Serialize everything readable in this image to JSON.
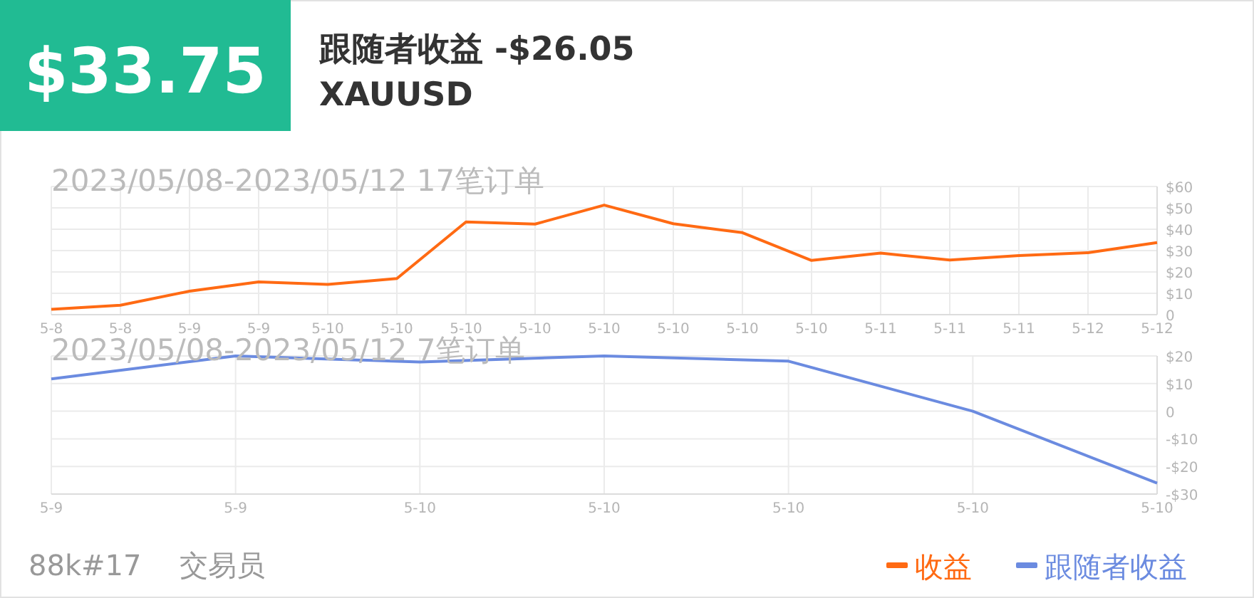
{
  "chart_data": [
    {
      "type": "line",
      "title": "2023/05/08-2023/05/12 17笔订单",
      "categories": [
        "5-8",
        "5-8",
        "5-9",
        "5-9",
        "5-10",
        "5-10",
        "5-10",
        "5-10",
        "5-10",
        "5-10",
        "5-10",
        "5-10",
        "5-11",
        "5-11",
        "5-11",
        "5-12",
        "5-12"
      ],
      "series": [
        {
          "name": "收益",
          "color": "#ff6a13",
          "values": [
            2.5,
            4.4,
            11,
            15.3,
            14.2,
            16.9,
            43.4,
            42.4,
            51.3,
            42.6,
            38.4,
            25.4,
            28.8,
            25.6,
            27.7,
            29,
            33.75
          ]
        }
      ],
      "ylim": [
        0,
        60
      ],
      "yticks": [
        {
          "value": 0,
          "label": "0"
        },
        {
          "value": 10,
          "label": "$10"
        },
        {
          "value": 20,
          "label": "$20"
        },
        {
          "value": 30,
          "label": "$30"
        },
        {
          "value": 40,
          "label": "$40"
        },
        {
          "value": 50,
          "label": "$50"
        },
        {
          "value": 60,
          "label": "$60"
        }
      ],
      "grid": true,
      "legend": "bottom right",
      "annotations": [
        "$33.75",
        "跟随者收益 -$26.05",
        "XAUUSD"
      ]
    },
    {
      "type": "line",
      "title": "2023/05/08-2023/05/12 7笔订单",
      "categories": [
        "5-9",
        "5-9",
        "5-10",
        "5-10",
        "5-10",
        "5-10",
        "5-10"
      ],
      "series": [
        {
          "name": "跟随者收益",
          "color": "#6b8be0",
          "values": [
            11.7,
            20,
            17.8,
            20,
            18.1,
            0,
            -26.05
          ]
        }
      ],
      "ylim": [
        -30,
        20
      ],
      "yticks": [
        {
          "value": -30,
          "label": "-$30"
        },
        {
          "value": -20,
          "label": "-$20"
        },
        {
          "value": -10,
          "label": "-$10"
        },
        {
          "value": 0,
          "label": "0"
        },
        {
          "value": 10,
          "label": "$10"
        },
        {
          "value": 20,
          "label": "$20"
        }
      ],
      "grid": true,
      "legend": "bottom right",
      "annotations": [
        "88k#17",
        "交易员"
      ]
    }
  ]
}
